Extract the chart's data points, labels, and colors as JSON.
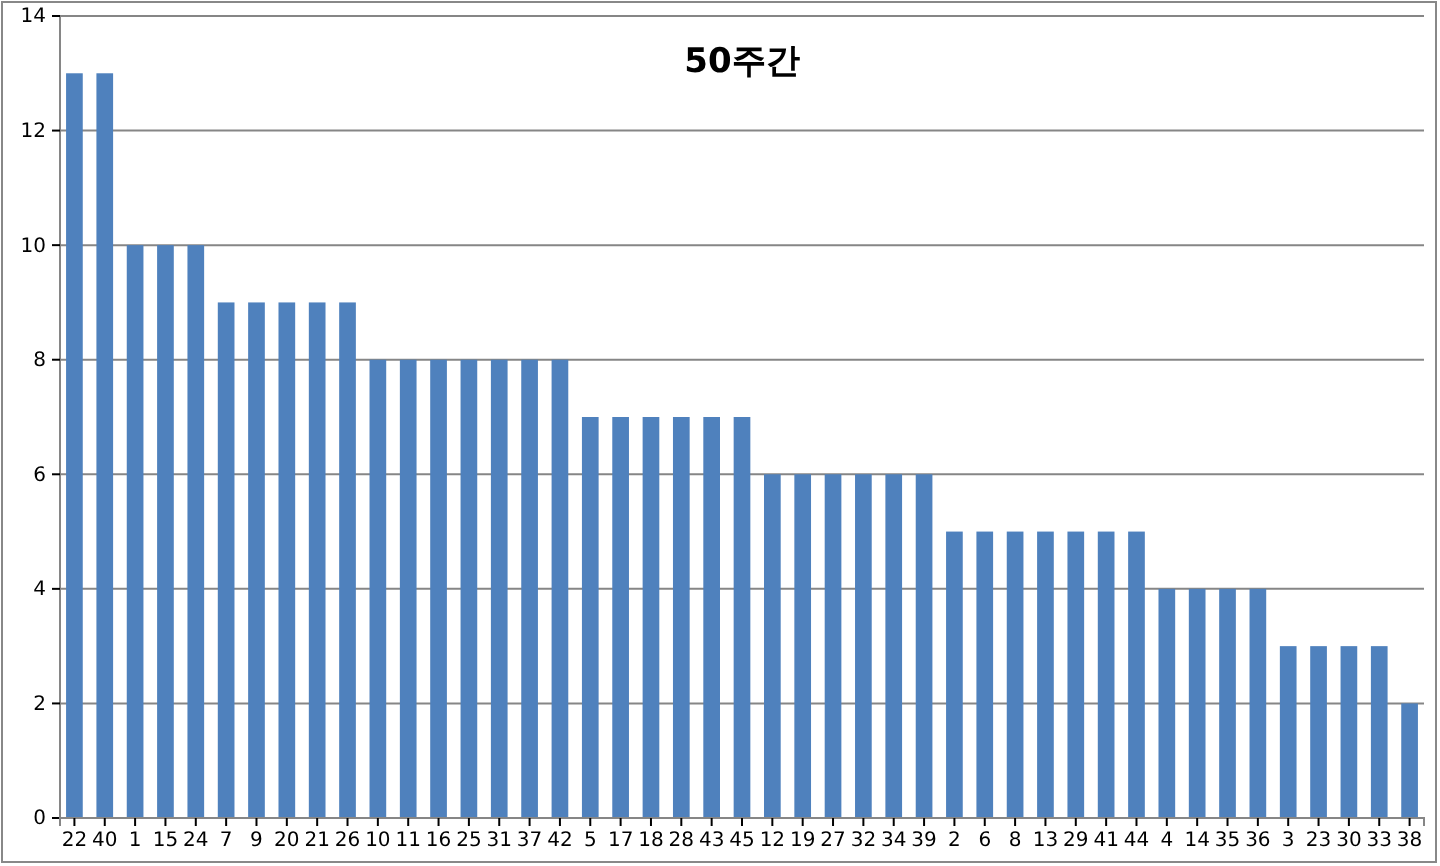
{
  "chart_data": {
    "type": "bar",
    "title": "50주간",
    "categories": [
      "22",
      "40",
      "1",
      "15",
      "24",
      "7",
      "9",
      "20",
      "21",
      "26",
      "10",
      "11",
      "16",
      "25",
      "31",
      "37",
      "42",
      "5",
      "17",
      "18",
      "28",
      "43",
      "45",
      "12",
      "19",
      "27",
      "32",
      "34",
      "39",
      "2",
      "6",
      "8",
      "13",
      "29",
      "41",
      "44",
      "4",
      "14",
      "35",
      "36",
      "3",
      "23",
      "30",
      "33",
      "38"
    ],
    "values": [
      13,
      13,
      10,
      10,
      10,
      9,
      9,
      9,
      9,
      9,
      8,
      8,
      8,
      8,
      8,
      8,
      8,
      7,
      7,
      7,
      7,
      7,
      7,
      6,
      6,
      6,
      6,
      6,
      6,
      5,
      5,
      5,
      5,
      5,
      5,
      5,
      4,
      4,
      4,
      4,
      3,
      3,
      3,
      3,
      2
    ],
    "color": "#4f81bd",
    "ylim": [
      0,
      14
    ],
    "yticks": [
      0,
      2,
      4,
      6,
      8,
      10,
      12,
      14
    ],
    "grid": "y"
  }
}
